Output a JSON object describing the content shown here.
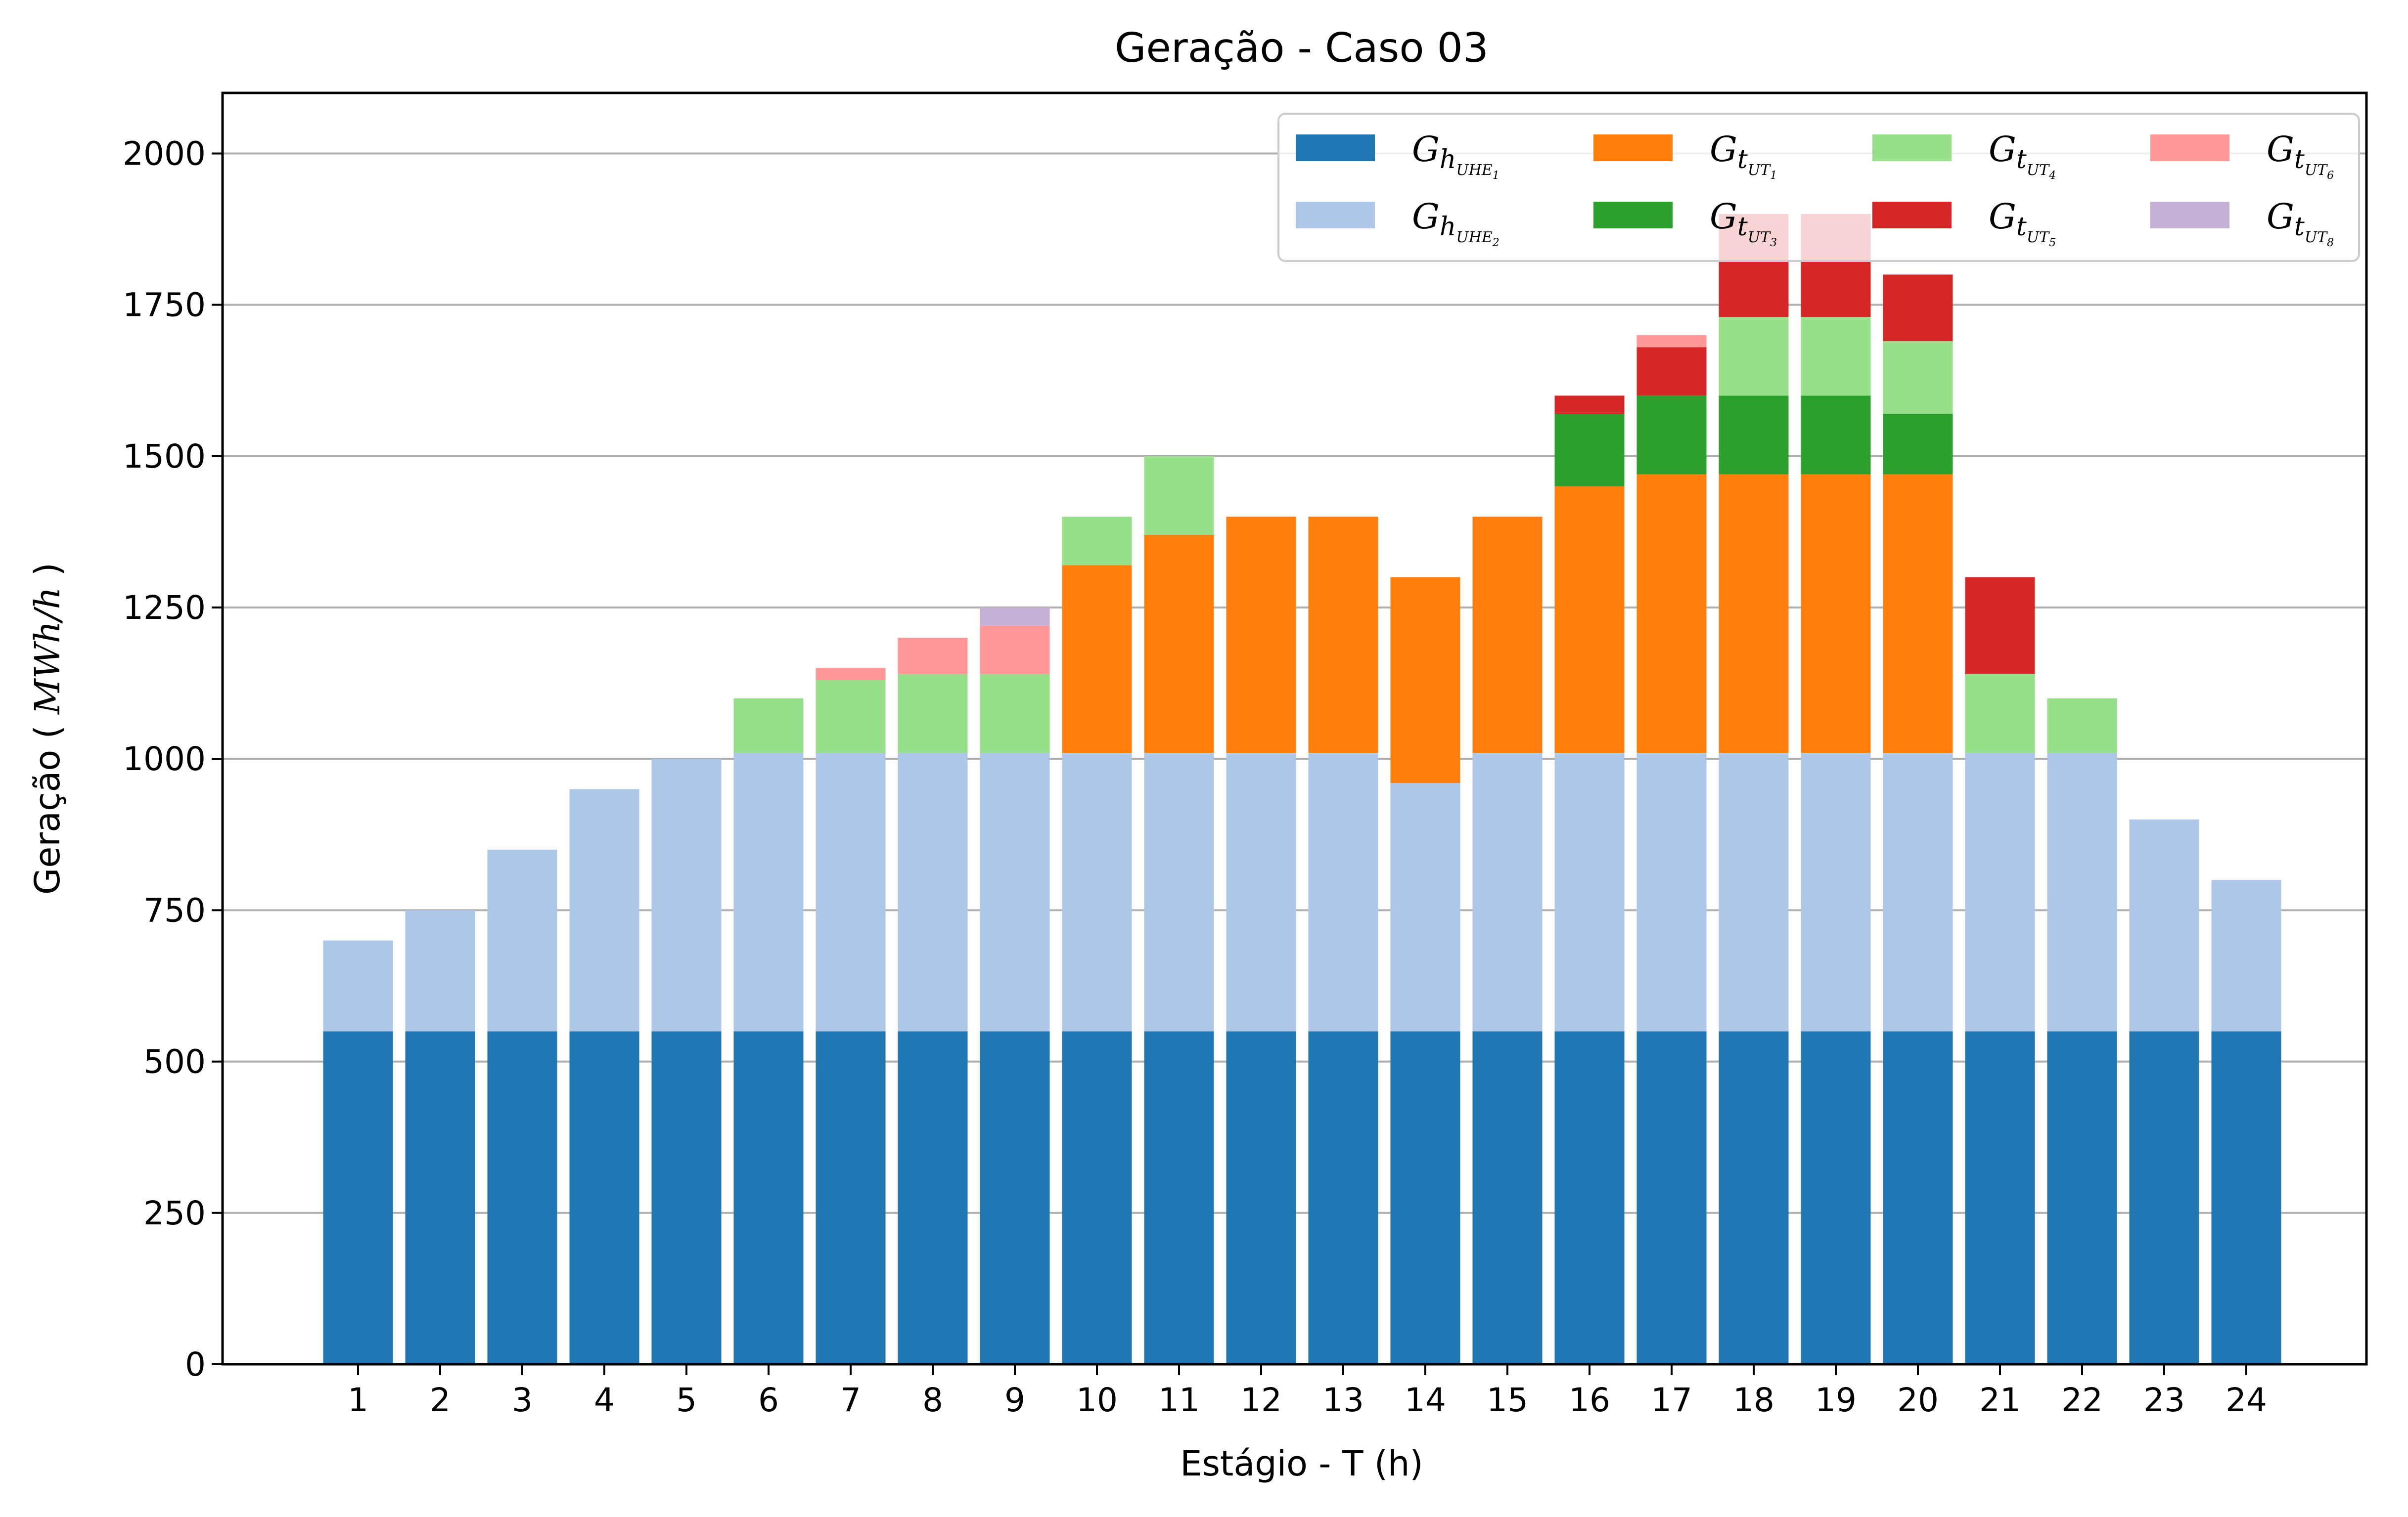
{
  "chart_data": {
    "type": "bar",
    "stacked": true,
    "title": "Geração - Caso 03",
    "xlabel": "Estágio - T (h)",
    "ylabel": "Geração",
    "ylabel_unit": "MWh/h",
    "ylim": [
      0,
      2100
    ],
    "yticks": [
      0,
      250,
      500,
      750,
      1000,
      1250,
      1500,
      1750,
      2000
    ],
    "grid": "y",
    "legend_position": "top-right",
    "categories": [
      "1",
      "2",
      "3",
      "4",
      "5",
      "6",
      "7",
      "8",
      "9",
      "10",
      "11",
      "12",
      "13",
      "14",
      "15",
      "16",
      "17",
      "18",
      "19",
      "20",
      "21",
      "22",
      "23",
      "24"
    ],
    "series": [
      {
        "id": "uhe1",
        "label_main": "G",
        "label_sub": "h",
        "label_subsub_base": "UHE",
        "label_subsub_index": "1",
        "color": "#1f77b4",
        "values": [
          550,
          550,
          550,
          550,
          550,
          550,
          550,
          550,
          550,
          550,
          550,
          550,
          550,
          550,
          550,
          550,
          550,
          550,
          550,
          550,
          550,
          550,
          550,
          550
        ]
      },
      {
        "id": "uhe2",
        "label_main": "G",
        "label_sub": "h",
        "label_subsub_base": "UHE",
        "label_subsub_index": "2",
        "color": "#aec7e8",
        "values": [
          150,
          200,
          300,
          400,
          450,
          460,
          460,
          460,
          460,
          460,
          460,
          460,
          460,
          410,
          460,
          460,
          460,
          460,
          460,
          460,
          460,
          460,
          350,
          250
        ]
      },
      {
        "id": "ut1",
        "label_main": "G",
        "label_sub": "t",
        "label_subsub_base": "UT",
        "label_subsub_index": "1",
        "color": "#ff7f0e",
        "values": [
          0,
          0,
          0,
          0,
          0,
          0,
          0,
          0,
          0,
          310,
          360,
          390,
          390,
          340,
          390,
          440,
          460,
          460,
          460,
          460,
          0,
          0,
          0,
          0
        ]
      },
      {
        "id": "ut3",
        "label_main": "G",
        "label_sub": "t",
        "label_subsub_base": "UT",
        "label_subsub_index": "3",
        "color": "#2ca02c",
        "values": [
          0,
          0,
          0,
          0,
          0,
          0,
          0,
          0,
          0,
          0,
          0,
          0,
          0,
          0,
          0,
          120,
          130,
          130,
          130,
          100,
          0,
          0,
          0,
          0
        ]
      },
      {
        "id": "ut4",
        "label_main": "G",
        "label_sub": "t",
        "label_subsub_base": "UT",
        "label_subsub_index": "4",
        "color": "#98df8a",
        "values": [
          0,
          0,
          0,
          0,
          0,
          90,
          120,
          130,
          130,
          80,
          130,
          0,
          0,
          0,
          0,
          0,
          0,
          130,
          130,
          120,
          130,
          90,
          0,
          0
        ]
      },
      {
        "id": "ut5",
        "label_main": "G",
        "label_sub": "t",
        "label_subsub_base": "UT",
        "label_subsub_index": "5",
        "color": "#d62728",
        "values": [
          0,
          0,
          0,
          0,
          0,
          0,
          0,
          0,
          0,
          0,
          0,
          0,
          0,
          0,
          0,
          30,
          80,
          170,
          170,
          110,
          160,
          0,
          0,
          0
        ]
      },
      {
        "id": "ut6",
        "label_main": "G",
        "label_sub": "t",
        "label_subsub_base": "UT",
        "label_subsub_index": "6",
        "color": "#ff9896",
        "values": [
          0,
          0,
          0,
          0,
          0,
          0,
          20,
          60,
          80,
          0,
          0,
          0,
          0,
          0,
          0,
          0,
          20,
          0,
          0,
          0,
          0,
          0,
          0,
          0
        ]
      },
      {
        "id": "ut8",
        "label_main": "G",
        "label_sub": "t",
        "label_subsub_base": "UT",
        "label_subsub_index": "8",
        "color": "#c5b0d5",
        "values": [
          0,
          0,
          0,
          0,
          0,
          0,
          0,
          0,
          30,
          0,
          0,
          0,
          0,
          0,
          0,
          0,
          0,
          0,
          0,
          0,
          0,
          0,
          0,
          0
        ]
      }
    ],
    "legend_order": [
      "uhe1",
      "uhe2",
      "ut1",
      "ut3",
      "ut4",
      "ut5",
      "ut6",
      "ut8"
    ]
  }
}
